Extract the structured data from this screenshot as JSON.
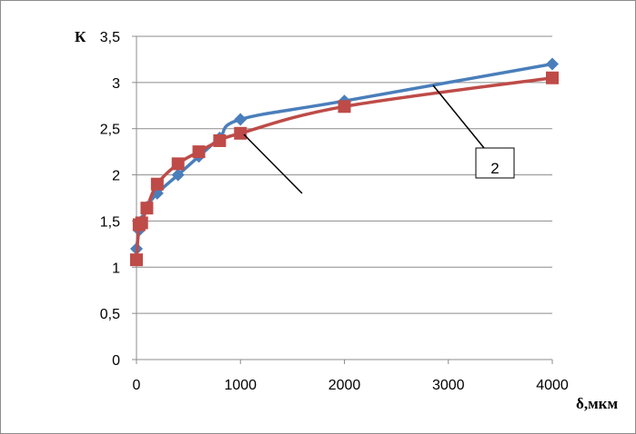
{
  "chart_data": {
    "type": "line",
    "xlabel": "δ,мкм",
    "ylabel": "К",
    "xlim": [
      0,
      4000
    ],
    "ylim": [
      0,
      3.5
    ],
    "x_ticks": [
      0,
      1000,
      2000,
      3000,
      4000
    ],
    "y_ticks": [
      0,
      0.5,
      1,
      1.5,
      2,
      2.5,
      3,
      3.5
    ],
    "x_tick_labels": [
      "0",
      "1000",
      "2000",
      "3000",
      "4000"
    ],
    "y_tick_labels": [
      "0",
      "0,5",
      "1",
      "1,5",
      "2",
      "2,5",
      "3",
      "3,5"
    ],
    "grid": "horizontal",
    "legend": "none",
    "callout_label": "2",
    "series": [
      {
        "color": "#4a7ebb",
        "marker": "diamond",
        "x": [
          0,
          25,
          50,
          100,
          200,
          400,
          600,
          800,
          1000,
          2000,
          4000
        ],
        "y": [
          1.2,
          1.4,
          1.5,
          1.65,
          1.8,
          2.0,
          2.2,
          2.4,
          2.6,
          2.8,
          3.2
        ]
      },
      {
        "color": "#be4b48",
        "marker": "square",
        "x": [
          0,
          25,
          50,
          100,
          200,
          400,
          600,
          800,
          1000,
          2000,
          4000
        ],
        "y": [
          1.08,
          1.46,
          1.48,
          1.64,
          1.9,
          2.12,
          2.25,
          2.37,
          2.45,
          2.74,
          3.05
        ]
      }
    ]
  }
}
